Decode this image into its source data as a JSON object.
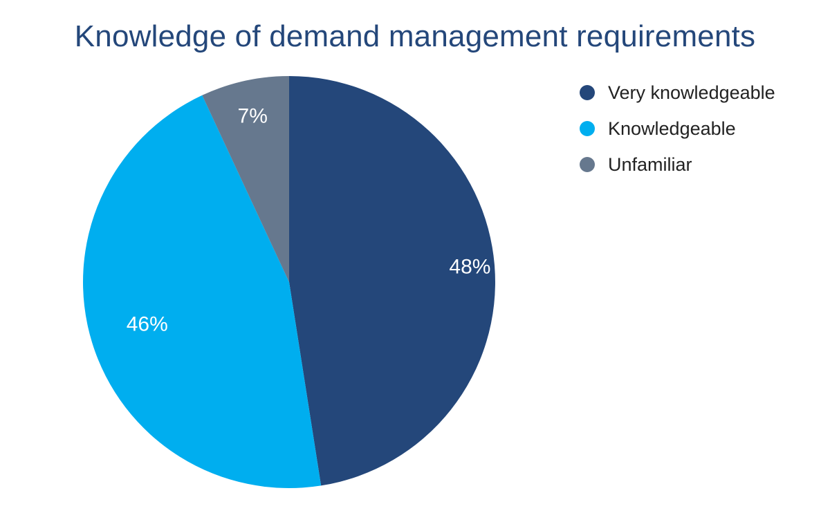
{
  "chart_data": {
    "type": "pie",
    "title": "Knowledge of demand management requirements",
    "slices": [
      {
        "label": "Very knowledgeable",
        "value": 48,
        "display": "48%",
        "color": "#24477a"
      },
      {
        "label": "Knowledgeable",
        "value": 46,
        "display": "46%",
        "color": "#00aeef"
      },
      {
        "label": "Unfamiliar",
        "value": 7,
        "display": "7%",
        "color": "#66788e"
      }
    ],
    "legend_position": "top-right",
    "data_label_color": "#ffffff"
  }
}
